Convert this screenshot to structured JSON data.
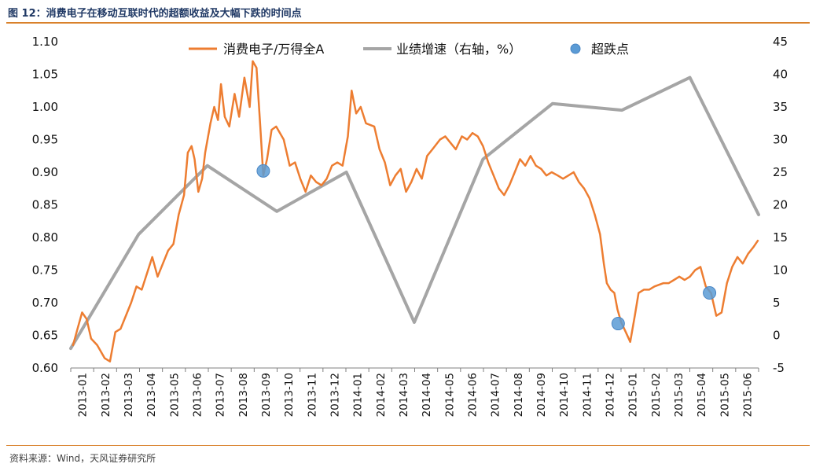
{
  "figure": {
    "title": "图 12：消费电子在移动互联时代的超额收益及大幅下跌的时间点",
    "source": "资料来源：Wind，天风证券研究所"
  },
  "chart_data": {
    "type": "line",
    "legend": [
      "消费电子/万得全A",
      "业绩增速（右轴，%）",
      "超跌点"
    ],
    "legend_position": "top",
    "colors": {
      "ratio": "#ed7d31",
      "growth": "#a5a5a5",
      "dip": "#5b9bd5"
    },
    "y_left": {
      "min": 0.6,
      "max": 1.1,
      "ticks": [
        "0.60",
        "0.65",
        "0.70",
        "0.75",
        "0.80",
        "0.85",
        "0.90",
        "0.95",
        "1.00",
        "1.05",
        "1.10"
      ]
    },
    "y_right": {
      "min": -5,
      "max": 45,
      "ticks": [
        "-5",
        "0",
        "5",
        "10",
        "15",
        "20",
        "25",
        "30",
        "35",
        "40",
        "45"
      ]
    },
    "x_labels": [
      "2013-01",
      "2013-02",
      "2013-03",
      "2013-04",
      "2013-05",
      "2013-06",
      "2013-07",
      "2013-08",
      "2013-09",
      "2013-10",
      "2013-11",
      "2013-12",
      "2014-01",
      "2014-02",
      "2014-03",
      "2014-04",
      "2014-05",
      "2014-06",
      "2014-07",
      "2014-08",
      "2014-09",
      "2014-10",
      "2014-11",
      "2014-12",
      "2015-01",
      "2015-02",
      "2015-03",
      "2015-04",
      "2015-05",
      "2015-06"
    ],
    "x_range": [
      "2013-01-01",
      "2015-07-01"
    ],
    "grid": false,
    "ratio_series": [
      [
        "2013-01-04",
        0.635
      ],
      [
        "2013-01-10",
        0.66
      ],
      [
        "2013-01-16",
        0.685
      ],
      [
        "2013-01-22",
        0.675
      ],
      [
        "2013-01-28",
        0.645
      ],
      [
        "2013-02-05",
        0.635
      ],
      [
        "2013-02-15",
        0.615
      ],
      [
        "2013-02-22",
        0.61
      ],
      [
        "2013-03-01",
        0.655
      ],
      [
        "2013-03-08",
        0.66
      ],
      [
        "2013-03-15",
        0.68
      ],
      [
        "2013-03-22",
        0.7
      ],
      [
        "2013-03-29",
        0.725
      ],
      [
        "2013-04-05",
        0.72
      ],
      [
        "2013-04-12",
        0.745
      ],
      [
        "2013-04-19",
        0.77
      ],
      [
        "2013-04-26",
        0.74
      ],
      [
        "2013-05-03",
        0.76
      ],
      [
        "2013-05-10",
        0.78
      ],
      [
        "2013-05-17",
        0.79
      ],
      [
        "2013-05-24",
        0.835
      ],
      [
        "2013-05-31",
        0.865
      ],
      [
        "2013-06-05",
        0.93
      ],
      [
        "2013-06-10",
        0.94
      ],
      [
        "2013-06-14",
        0.92
      ],
      [
        "2013-06-19",
        0.87
      ],
      [
        "2013-06-24",
        0.89
      ],
      [
        "2013-06-28",
        0.93
      ],
      [
        "2013-07-05",
        0.975
      ],
      [
        "2013-07-10",
        1.0
      ],
      [
        "2013-07-15",
        0.98
      ],
      [
        "2013-07-19",
        1.035
      ],
      [
        "2013-07-24",
        0.985
      ],
      [
        "2013-07-30",
        0.97
      ],
      [
        "2013-08-06",
        1.02
      ],
      [
        "2013-08-12",
        0.985
      ],
      [
        "2013-08-19",
        1.045
      ],
      [
        "2013-08-26",
        1.0
      ],
      [
        "2013-08-30",
        1.07
      ],
      [
        "2013-09-04",
        1.06
      ],
      [
        "2013-09-09",
        0.97
      ],
      [
        "2013-09-13",
        0.895
      ],
      [
        "2013-09-18",
        0.92
      ],
      [
        "2013-09-24",
        0.965
      ],
      [
        "2013-09-30",
        0.97
      ],
      [
        "2013-10-10",
        0.95
      ],
      [
        "2013-10-18",
        0.91
      ],
      [
        "2013-10-25",
        0.915
      ],
      [
        "2013-11-01",
        0.89
      ],
      [
        "2013-11-08",
        0.87
      ],
      [
        "2013-11-15",
        0.895
      ],
      [
        "2013-11-22",
        0.885
      ],
      [
        "2013-11-29",
        0.88
      ],
      [
        "2013-12-06",
        0.89
      ],
      [
        "2013-12-13",
        0.91
      ],
      [
        "2013-12-20",
        0.915
      ],
      [
        "2013-12-27",
        0.91
      ],
      [
        "2014-01-03",
        0.955
      ],
      [
        "2014-01-08",
        1.025
      ],
      [
        "2014-01-14",
        0.99
      ],
      [
        "2014-01-20",
        1.0
      ],
      [
        "2014-01-27",
        0.975
      ],
      [
        "2014-02-07",
        0.97
      ],
      [
        "2014-02-14",
        0.935
      ],
      [
        "2014-02-21",
        0.915
      ],
      [
        "2014-02-28",
        0.88
      ],
      [
        "2014-03-07",
        0.895
      ],
      [
        "2014-03-14",
        0.905
      ],
      [
        "2014-03-21",
        0.87
      ],
      [
        "2014-03-28",
        0.885
      ],
      [
        "2014-04-04",
        0.905
      ],
      [
        "2014-04-11",
        0.89
      ],
      [
        "2014-04-18",
        0.925
      ],
      [
        "2014-04-25",
        0.935
      ],
      [
        "2014-05-05",
        0.95
      ],
      [
        "2014-05-12",
        0.955
      ],
      [
        "2014-05-19",
        0.945
      ],
      [
        "2014-05-26",
        0.935
      ],
      [
        "2014-06-03",
        0.955
      ],
      [
        "2014-06-10",
        0.95
      ],
      [
        "2014-06-17",
        0.96
      ],
      [
        "2014-06-24",
        0.955
      ],
      [
        "2014-07-01",
        0.94
      ],
      [
        "2014-07-08",
        0.915
      ],
      [
        "2014-07-15",
        0.895
      ],
      [
        "2014-07-22",
        0.875
      ],
      [
        "2014-07-29",
        0.865
      ],
      [
        "2014-08-05",
        0.88
      ],
      [
        "2014-08-12",
        0.9
      ],
      [
        "2014-08-19",
        0.92
      ],
      [
        "2014-08-26",
        0.91
      ],
      [
        "2014-09-02",
        0.925
      ],
      [
        "2014-09-09",
        0.91
      ],
      [
        "2014-09-16",
        0.905
      ],
      [
        "2014-09-23",
        0.895
      ],
      [
        "2014-09-30",
        0.9
      ],
      [
        "2014-10-08",
        0.895
      ],
      [
        "2014-10-15",
        0.89
      ],
      [
        "2014-10-22",
        0.895
      ],
      [
        "2014-10-29",
        0.9
      ],
      [
        "2014-11-05",
        0.885
      ],
      [
        "2014-11-12",
        0.875
      ],
      [
        "2014-11-19",
        0.86
      ],
      [
        "2014-11-26",
        0.835
      ],
      [
        "2014-12-03",
        0.805
      ],
      [
        "2014-12-08",
        0.76
      ],
      [
        "2014-12-12",
        0.73
      ],
      [
        "2014-12-17",
        0.72
      ],
      [
        "2014-12-22",
        0.715
      ],
      [
        "2014-12-26",
        0.69
      ],
      [
        "2014-12-31",
        0.67
      ],
      [
        "2015-01-06",
        0.655
      ],
      [
        "2015-01-12",
        0.64
      ],
      [
        "2015-01-18",
        0.68
      ],
      [
        "2015-01-23",
        0.715
      ],
      [
        "2015-01-30",
        0.72
      ],
      [
        "2015-02-06",
        0.72
      ],
      [
        "2015-02-13",
        0.725
      ],
      [
        "2015-02-25",
        0.73
      ],
      [
        "2015-03-04",
        0.73
      ],
      [
        "2015-03-11",
        0.735
      ],
      [
        "2015-03-18",
        0.74
      ],
      [
        "2015-03-25",
        0.735
      ],
      [
        "2015-04-01",
        0.74
      ],
      [
        "2015-04-08",
        0.75
      ],
      [
        "2015-04-15",
        0.755
      ],
      [
        "2015-04-22",
        0.725
      ],
      [
        "2015-04-29",
        0.715
      ],
      [
        "2015-05-06",
        0.68
      ],
      [
        "2015-05-13",
        0.685
      ],
      [
        "2015-05-20",
        0.73
      ],
      [
        "2015-05-27",
        0.755
      ],
      [
        "2015-06-03",
        0.77
      ],
      [
        "2015-06-10",
        0.76
      ],
      [
        "2015-06-17",
        0.775
      ],
      [
        "2015-06-24",
        0.785
      ],
      [
        "2015-06-30",
        0.795
      ]
    ],
    "growth_series": [
      [
        "2013-01-01",
        -2
      ],
      [
        "2013-04-01",
        15.5
      ],
      [
        "2013-07-01",
        26
      ],
      [
        "2013-10-01",
        19
      ],
      [
        "2014-01-01",
        25
      ],
      [
        "2014-04-01",
        2
      ],
      [
        "2014-07-01",
        27
      ],
      [
        "2014-10-01",
        35.5
      ],
      [
        "2015-01-01",
        34.5
      ],
      [
        "2015-04-01",
        39.5
      ],
      [
        "2015-07-01",
        18.5
      ]
    ],
    "dip_points": [
      [
        "2013-09-13",
        0.902
      ],
      [
        "2014-12-27",
        0.668
      ],
      [
        "2015-04-27",
        0.715
      ]
    ]
  }
}
